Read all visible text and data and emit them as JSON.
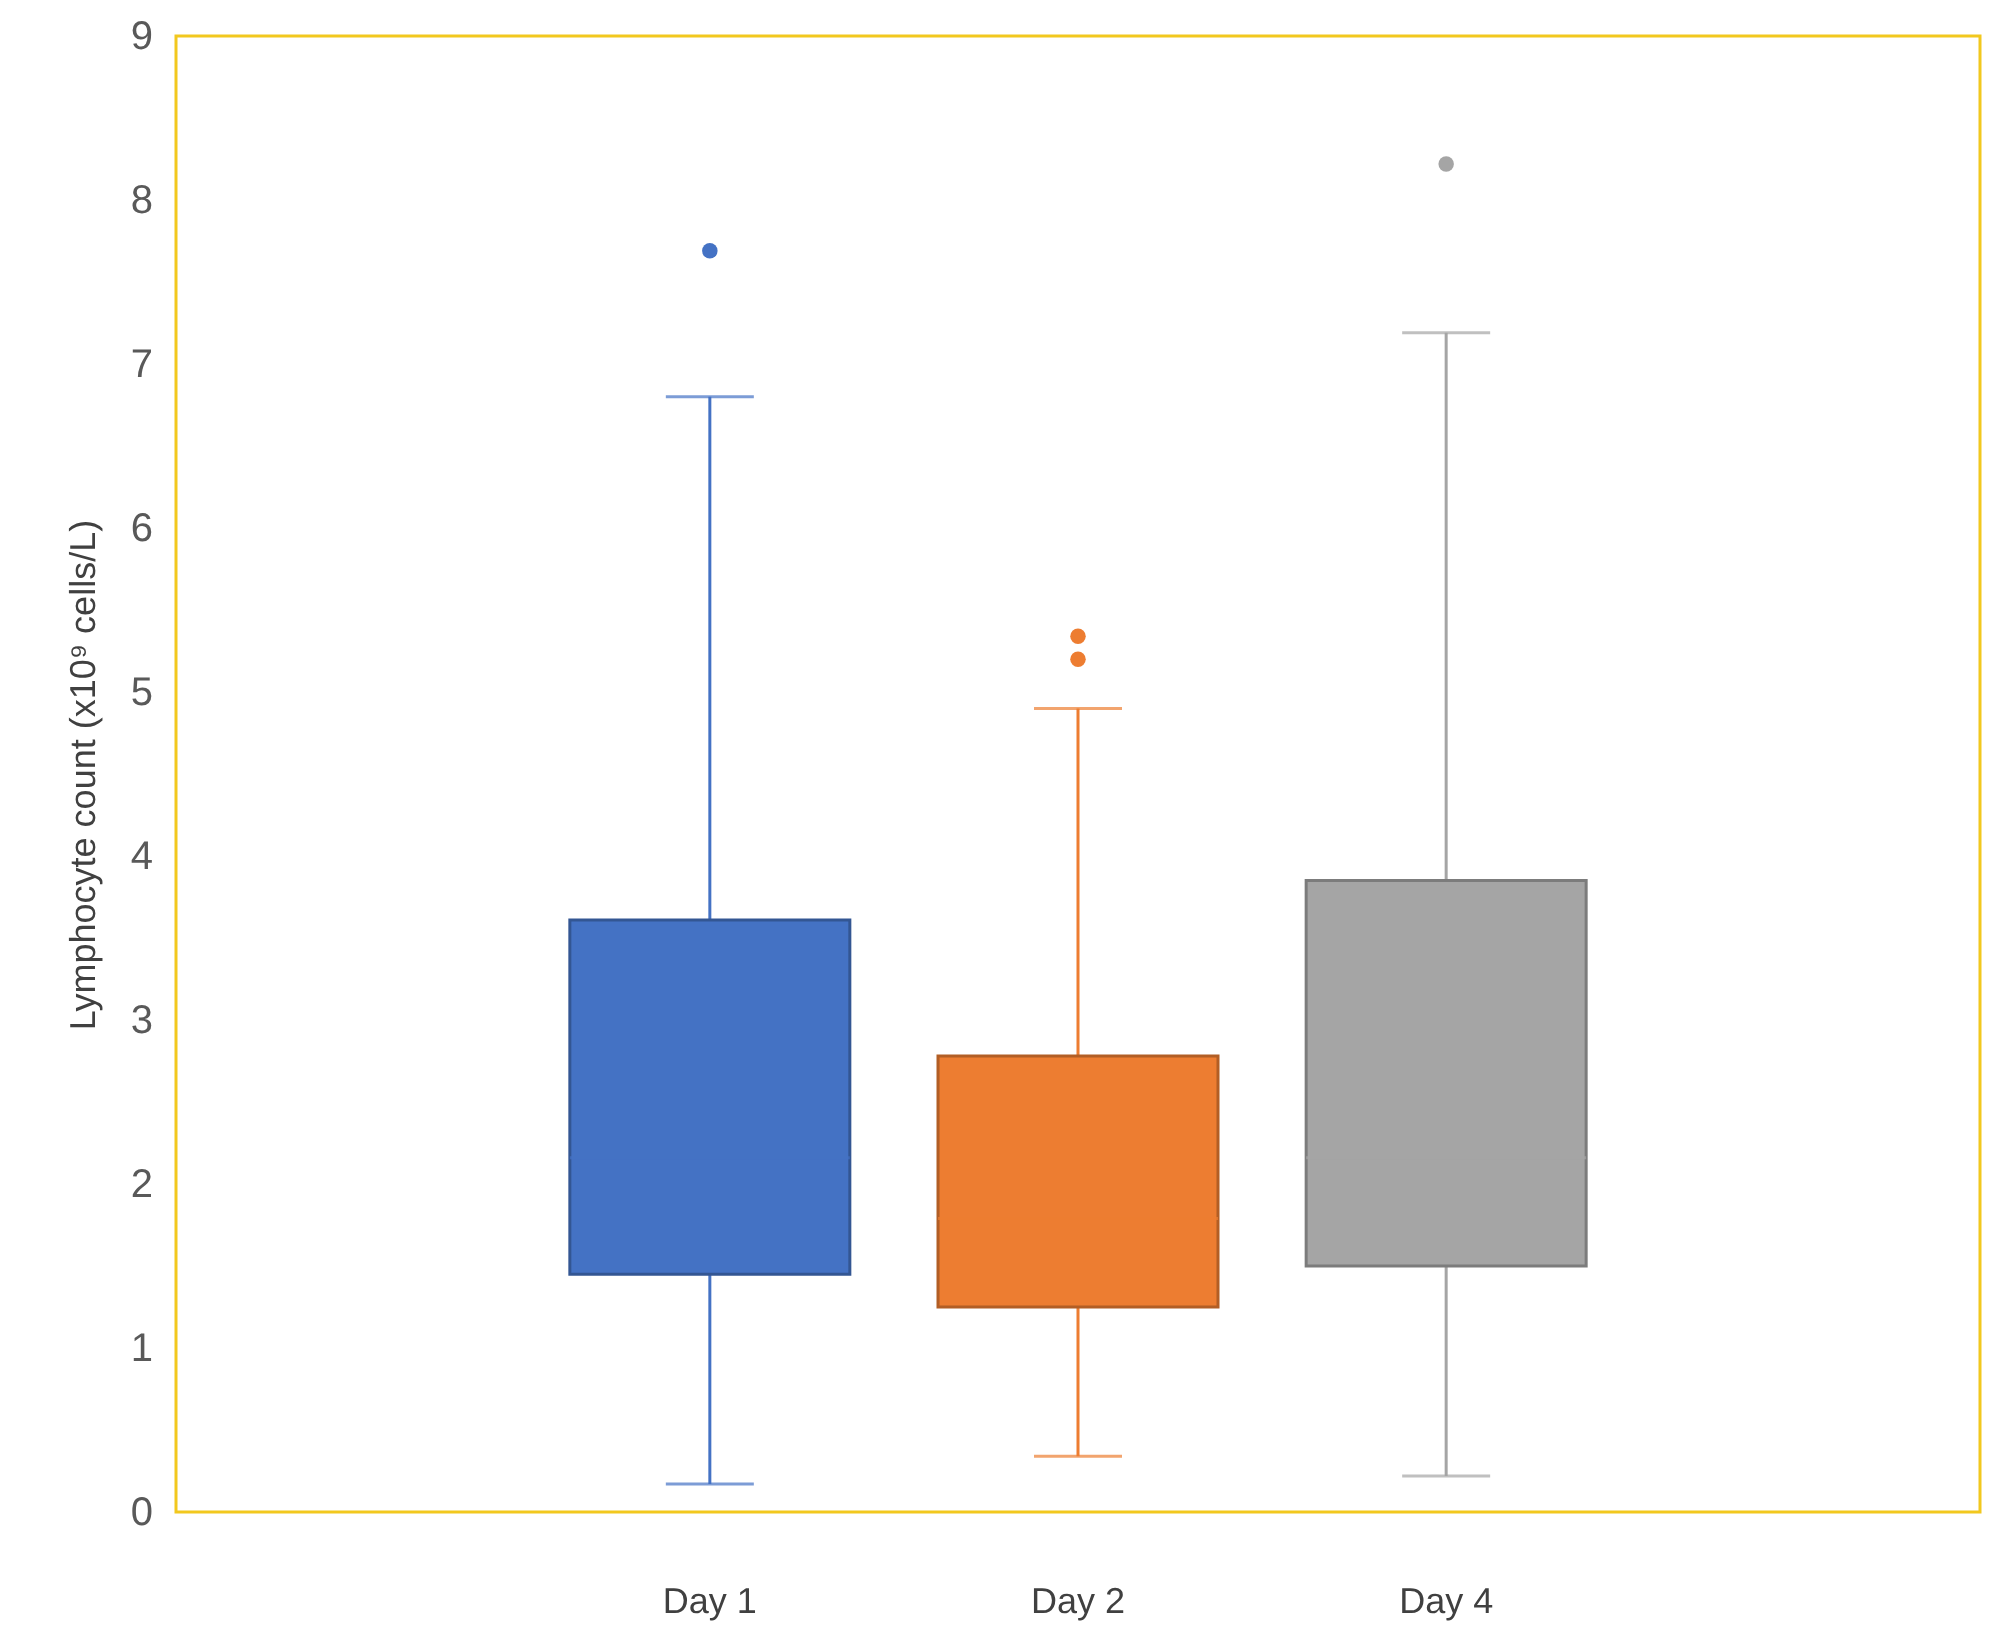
{
  "chart_data": {
    "type": "box",
    "ylabel": "Lymphocyte count (x10⁹ cells/L)",
    "categories": [
      "Day 1",
      "Day 2",
      "Day 4"
    ],
    "colors": [
      "#4472c4",
      "#ed7d31",
      "#a5a5a5"
    ],
    "boxes": [
      {
        "low": 0.17,
        "q1": 1.45,
        "median": 2.16,
        "q3": 3.61,
        "high": 6.8,
        "outliers": [
          7.69
        ]
      },
      {
        "low": 0.34,
        "q1": 1.25,
        "median": 1.79,
        "q3": 2.78,
        "high": 4.9,
        "outliers": [
          5.2,
          5.34
        ]
      },
      {
        "low": 0.22,
        "q1": 1.5,
        "median": 2.16,
        "q3": 3.85,
        "high": 7.19,
        "outliers": [
          8.22
        ]
      }
    ],
    "ylim": [
      0,
      9
    ],
    "yticks": [
      0,
      1,
      2,
      3,
      4,
      5,
      6,
      7,
      8,
      9
    ],
    "grid": false
  }
}
